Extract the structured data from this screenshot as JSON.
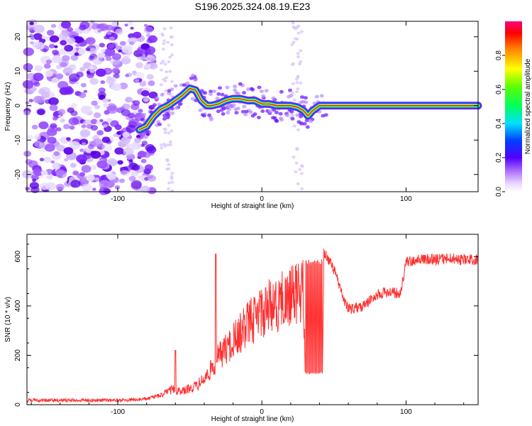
{
  "title": "S196.2025.324.08.19.E23",
  "chart_data": [
    {
      "type": "heatmap",
      "name": "spectrogram",
      "xlabel": "Height of straight line (km)",
      "ylabel": "Frequency (Hz)",
      "xlim": [
        -163,
        150
      ],
      "ylim": [
        -25,
        24.5
      ],
      "xticks": [
        -100,
        0,
        100
      ],
      "yticks": [
        -20,
        -10,
        0,
        10,
        20
      ],
      "noise_region_x": [
        -163,
        -80
      ],
      "ridge": {
        "x": [
          -85,
          -80,
          -75,
          -70,
          -65,
          -60,
          -55,
          -50,
          -46,
          -42,
          -38,
          -35,
          -30,
          -25,
          -20,
          -15,
          -10,
          -5,
          0,
          5,
          10,
          20,
          25,
          29,
          32,
          35,
          40,
          60,
          80,
          100,
          120,
          150
        ],
        "freq": [
          -7,
          -6,
          -3,
          -1,
          0,
          1.5,
          3,
          5,
          4.5,
          1.5,
          0,
          0,
          0.5,
          1.5,
          2,
          2,
          1.5,
          1.5,
          0.5,
          0.5,
          0,
          0,
          -0.5,
          -1.5,
          -3,
          -1.5,
          0,
          0,
          0,
          0,
          0,
          0
        ]
      }
    },
    {
      "type": "colorbar",
      "label": "Normalized spectral amplitude",
      "range": [
        0,
        1
      ],
      "ticks": [
        "0.0",
        "0.2",
        "0.4",
        "0.6",
        "0.8"
      ],
      "tick_values": [
        0.0,
        0.2,
        0.4,
        0.6,
        0.8
      ]
    },
    {
      "type": "line",
      "name": "snr",
      "xlabel": "Height of straight line (km)",
      "ylabel": "SNR (10 * v/v)",
      "xlim": [
        -163,
        150
      ],
      "ylim": [
        0,
        690
      ],
      "xticks": [
        -100,
        0,
        100
      ],
      "yticks": [
        0,
        200,
        400,
        600
      ],
      "color": "#ff3030",
      "envelope": {
        "x": [
          -163,
          -120,
          -95,
          -80,
          -70,
          -62,
          -55,
          -45,
          -38,
          -30,
          -20,
          -10,
          0,
          10,
          20,
          25,
          29,
          30,
          42,
          43,
          45,
          50,
          53,
          56,
          60,
          70,
          80,
          90,
          95,
          97,
          100,
          110,
          120,
          130,
          140,
          150
        ],
        "y": [
          25,
          25,
          25,
          30,
          50,
          80,
          70,
          100,
          150,
          250,
          330,
          420,
          490,
          530,
          560,
          590,
          600,
          120,
          120,
          640,
          620,
          570,
          520,
          460,
          410,
          420,
          470,
          480,
          470,
          500,
          600,
          610,
          610,
          615,
          610,
          610
        ]
      },
      "spikes": [
        {
          "x": -60,
          "y": 220
        },
        {
          "x": -32,
          "y": 610
        }
      ]
    }
  ]
}
